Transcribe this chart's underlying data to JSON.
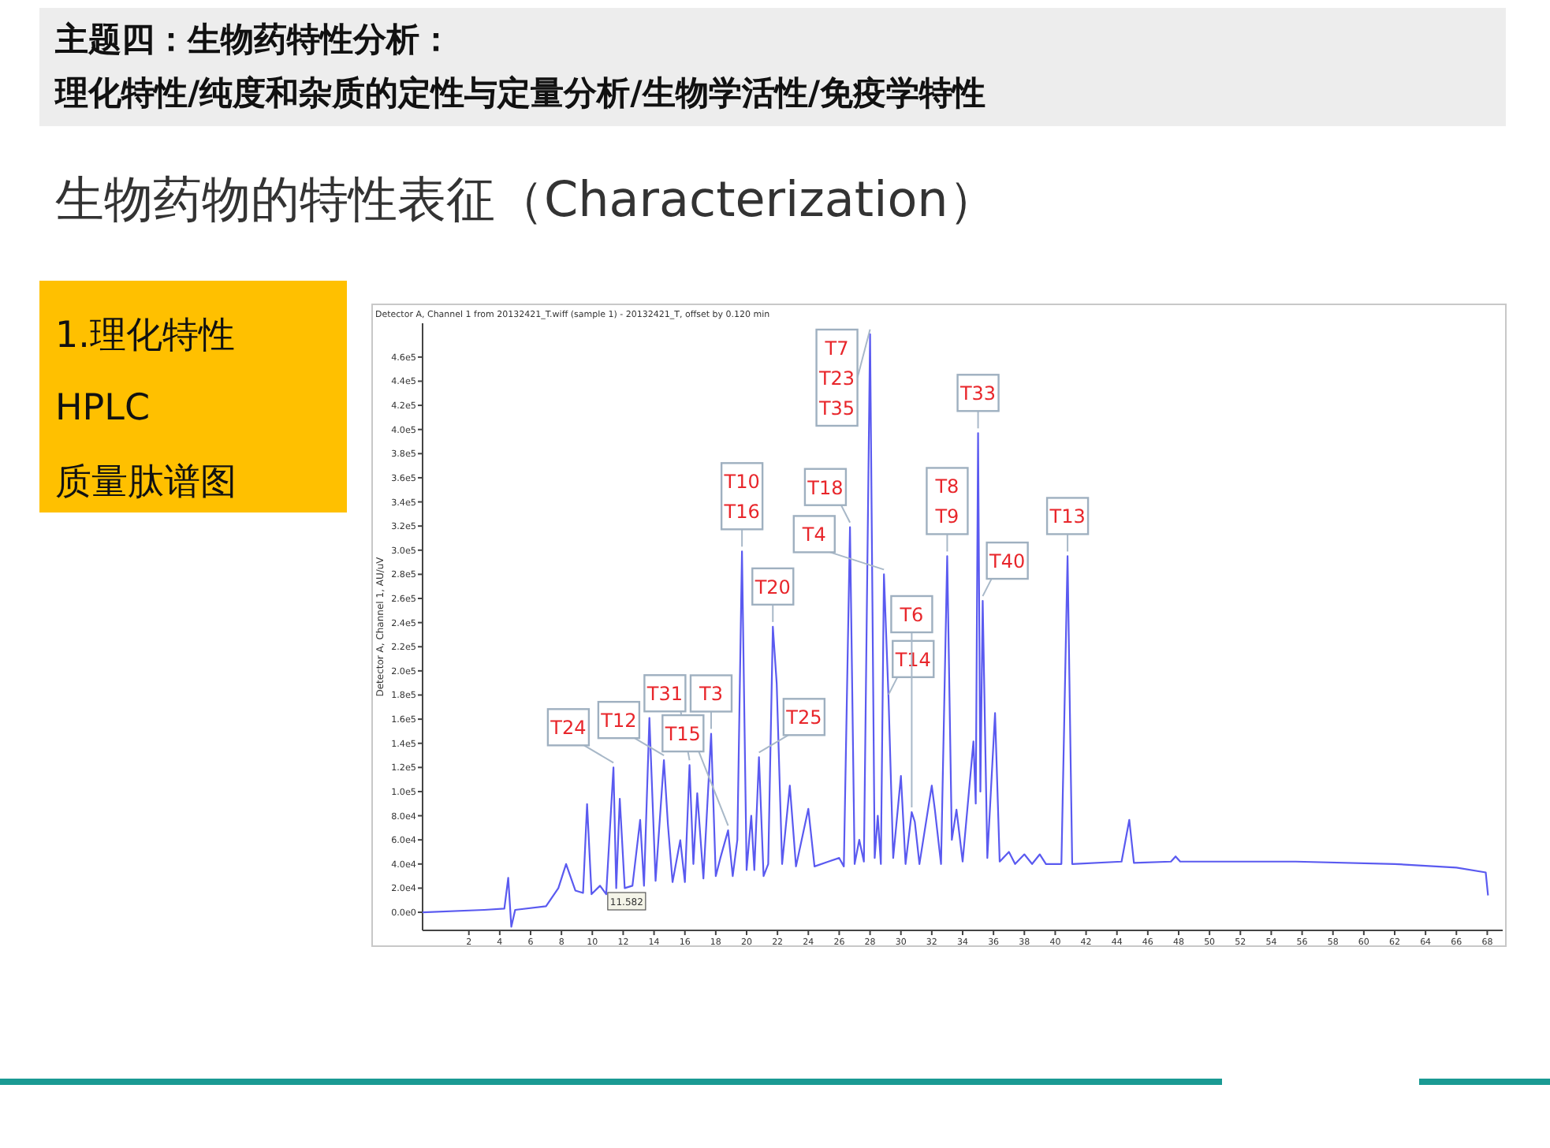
{
  "chart_data": {
    "type": "line",
    "title": "主题四：生物药特性分析：",
    "subtitle": "理化特性/纯度和杂质的定性与定量分析/生物学活性/免疫学特性",
    "ylabel": "Detector A, Channel 1, AU/uV",
    "xlim": [
      -1,
      69
    ],
    "ylim": [
      -15000,
      488000
    ],
    "xticks": [
      2,
      4,
      6,
      8,
      10,
      12,
      14,
      16,
      18,
      20,
      22,
      24,
      26,
      28,
      30,
      32,
      34,
      36,
      38,
      40,
      42,
      44,
      46,
      48,
      50,
      52,
      54,
      56,
      58,
      60,
      62,
      64,
      66,
      68
    ],
    "yticks": [
      {
        "value": 0,
        "label": "0.0e0"
      },
      {
        "value": 20000,
        "label": "2.0e4"
      },
      {
        "value": 40000,
        "label": "4.0e4"
      },
      {
        "value": 60000,
        "label": "6.0e4"
      },
      {
        "value": 80000,
        "label": "8.0e4"
      },
      {
        "value": 100000,
        "label": "1.0e5"
      },
      {
        "value": 120000,
        "label": "1.2e5"
      },
      {
        "value": 140000,
        "label": "1.4e5"
      },
      {
        "value": 160000,
        "label": "1.6e5"
      },
      {
        "value": 180000,
        "label": "1.8e5"
      },
      {
        "value": 200000,
        "label": "2.0e5"
      },
      {
        "value": 220000,
        "label": "2.2e5"
      },
      {
        "value": 240000,
        "label": "2.4e5"
      },
      {
        "value": 260000,
        "label": "2.6e5"
      },
      {
        "value": 280000,
        "label": "2.8e5"
      },
      {
        "value": 300000,
        "label": "3.0e5"
      },
      {
        "value": 320000,
        "label": "3.2e5"
      },
      {
        "value": 340000,
        "label": "3.4e5"
      },
      {
        "value": 360000,
        "label": "3.6e5"
      },
      {
        "value": 380000,
        "label": "3.8e5"
      },
      {
        "value": 400000,
        "label": "4.0e5"
      },
      {
        "value": 420000,
        "label": "4.2e5"
      },
      {
        "value": 440000,
        "label": "4.4e5"
      },
      {
        "value": 460000,
        "label": "4.6e5"
      }
    ],
    "series": [
      {
        "color": "#5a5af0",
        "x": [
          -1,
          3,
          4.3,
          4.55,
          4.75,
          5.0,
          7.0,
          7.8,
          8.3,
          8.9,
          9.4,
          9.66,
          9.95,
          10.5,
          10.9,
          11.37,
          11.55,
          11.78,
          12.1,
          12.6,
          13.1,
          13.35,
          13.7,
          14.1,
          14.64,
          14.9,
          15.2,
          15.7,
          16.0,
          16.3,
          16.55,
          16.8,
          17.2,
          17.7,
          18.0,
          18.3,
          18.8,
          19.1,
          19.4,
          19.7,
          20.0,
          20.3,
          20.5,
          20.8,
          21.1,
          21.4,
          21.7,
          21.95,
          22.3,
          22.8,
          23.2,
          24.0,
          24.4,
          25.3,
          26.0,
          26.3,
          26.7,
          27.0,
          27.3,
          27.6,
          28.0,
          28.3,
          28.5,
          28.7,
          28.9,
          29.2,
          29.5,
          30.0,
          30.3,
          30.7,
          30.9,
          31.2,
          32.0,
          32.2,
          32.6,
          33.0,
          33.3,
          33.6,
          34.0,
          34.7,
          34.85,
          35.0,
          35.15,
          35.3,
          35.6,
          36.1,
          36.4,
          37.0,
          37.4,
          38.0,
          38.5,
          39.0,
          39.4,
          40.4,
          40.8,
          41.1,
          44.3,
          44.8,
          45.1,
          47.5,
          47.8,
          48.1,
          55.6,
          62,
          66,
          67.9,
          68.05
        ],
        "values": [
          0,
          2000,
          3000,
          28500,
          -12000,
          2000,
          5000,
          20000,
          40000,
          18000,
          16000,
          89600,
          15000,
          22000,
          15000,
          120000,
          20000,
          94000,
          20000,
          22000,
          76600,
          22000,
          161000,
          26000,
          126000,
          72700,
          25000,
          59700,
          25000,
          122000,
          40000,
          98600,
          28000,
          148000,
          30000,
          45000,
          67900,
          30000,
          60000,
          299000,
          35000,
          80000,
          35000,
          128500,
          30000,
          40000,
          236600,
          189500,
          40000,
          105000,
          38000,
          85700,
          38000,
          42000,
          45000,
          38000,
          319000,
          40000,
          60000,
          42000,
          479000,
          45000,
          80000,
          40000,
          280000,
          176500,
          45000,
          113000,
          40000,
          83000,
          75000,
          40000,
          105000,
          85000,
          40000,
          295000,
          60000,
          85000,
          42000,
          141500,
          90000,
          397000,
          100000,
          258000,
          45000,
          165000,
          42000,
          50000,
          40000,
          48000,
          40000,
          48000,
          40000,
          40000,
          295000,
          40000,
          42000,
          76600,
          41000,
          42000,
          46300,
          42000,
          42000,
          40000,
          37000,
          33000,
          14000
        ]
      }
    ],
    "annotations": [
      "生物药物的特性表征（Characterization）",
      "1.理化特性",
      "HPLC",
      "质量肽谱图",
      "Detector A, Channel 1 from 20132421_T.wiff (sample 1) - 20132421_T, offset by 0.120 min",
      "11.582",
      {
        "text": "T24",
        "x": 11.37,
        "y": 120000
      },
      {
        "text": "T12",
        "x": 14.64,
        "y": 126000
      },
      {
        "text": "T31",
        "x": 16.3,
        "y": 122000
      },
      {
        "text": "T3",
        "x": 17.7,
        "y": 148000
      },
      {
        "text": "T15",
        "x": 18.8,
        "y": 67900
      },
      "T10",
      {
        "text": "T16",
        "x": 19.7,
        "y": 299000
      },
      {
        "text": "T25",
        "x": 20.8,
        "y": 128500
      },
      {
        "text": "T20",
        "x": 21.7,
        "y": 236600
      },
      {
        "text": "T18",
        "x": 26.7,
        "y": 319000
      },
      "T7",
      "T23",
      {
        "text": "T35",
        "x": 28.0,
        "y": 479000
      },
      {
        "text": "T4",
        "x": 28.9,
        "y": 280000
      },
      {
        "text": "T14",
        "x": 29.2,
        "y": 176500
      },
      {
        "text": "T6",
        "x": 30.7,
        "y": 83000
      },
      "T8",
      {
        "text": "T9",
        "x": 33.0,
        "y": 295000
      },
      {
        "text": "T33",
        "x": 35.0,
        "y": 397000
      },
      {
        "text": "T40",
        "x": 35.3,
        "y": 258000
      },
      {
        "text": "T13",
        "x": 40.8,
        "y": 295000
      }
    ]
  }
}
